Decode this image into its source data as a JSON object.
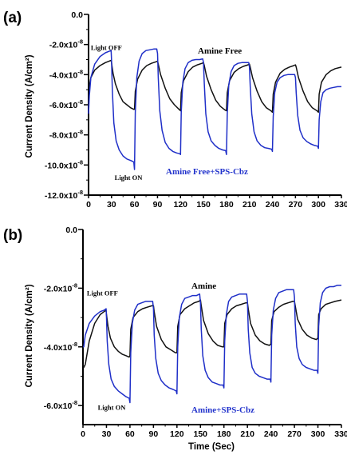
{
  "chart_data": [
    {
      "type": "line",
      "panel_label": "(a)",
      "title": "",
      "xlabel": "",
      "ylabel": "Current Density (A/cm²)",
      "xlim": [
        0,
        330
      ],
      "ylim": [
        -1.2e-07,
        0.0
      ],
      "x_ticks": [
        0,
        30,
        60,
        90,
        120,
        150,
        180,
        210,
        240,
        270,
        300,
        330
      ],
      "y_ticks": [
        {
          "value": 0.0,
          "label": "0.0"
        },
        {
          "value": -2e-08,
          "label": "-2.0x10",
          "exp": "-8"
        },
        {
          "value": -4e-08,
          "label": "-4.0x10",
          "exp": "-8"
        },
        {
          "value": -6e-08,
          "label": "-6.0x10",
          "exp": "-8"
        },
        {
          "value": -8e-08,
          "label": "-8.0x10",
          "exp": "-8"
        },
        {
          "value": -1e-07,
          "label": "-10.0x10",
          "exp": "-8"
        },
        {
          "value": -1.2e-07,
          "label": "-12.0x10",
          "exp": "-8"
        }
      ],
      "annotations": [
        {
          "text": "Light OFF",
          "x": 3,
          "y": -2.35e-08
        },
        {
          "text": "Light ON",
          "x": 34,
          "y": -1.1e-07
        }
      ],
      "series": [
        {
          "name": "Amine Free",
          "color": "#111111",
          "x": [
            0,
            1,
            3,
            8,
            15,
            22,
            27,
            29.5,
            30,
            32,
            35,
            40,
            45,
            50,
            55,
            59,
            60,
            61,
            64,
            70,
            76,
            82,
            88,
            90,
            91,
            94,
            100,
            106,
            112,
            118,
            120,
            121,
            124,
            130,
            136,
            142,
            148,
            150,
            151,
            154,
            160,
            166,
            172,
            178,
            180,
            181,
            184,
            190,
            196,
            202,
            208,
            210,
            211,
            214,
            220,
            226,
            232,
            238,
            240,
            241,
            244,
            250,
            256,
            262,
            268,
            270,
            271,
            274,
            280,
            286,
            292,
            298,
            300,
            301,
            304,
            310,
            316,
            322,
            330
          ],
          "y": [
            -5.9e-08,
            -4.8e-08,
            -4.2e-08,
            -3.7e-08,
            -3.4e-08,
            -3.2e-08,
            -3.1e-08,
            -3.05e-08,
            -3.2e-08,
            -3.9e-08,
            -4.6e-08,
            -5.3e-08,
            -5.8e-08,
            -6e-08,
            -6.2e-08,
            -6.3e-08,
            -6.3e-08,
            -5.1e-08,
            -4.3e-08,
            -3.7e-08,
            -3.4e-08,
            -3.25e-08,
            -3.15e-08,
            -3.1e-08,
            -3.3e-08,
            -4e-08,
            -4.9e-08,
            -5.6e-08,
            -6e-08,
            -6.3e-08,
            -6.4e-08,
            -5.2e-08,
            -4.4e-08,
            -3.8e-08,
            -3.5e-08,
            -3.35e-08,
            -3.25e-08,
            -3.2e-08,
            -3.4e-08,
            -4.1e-08,
            -5e-08,
            -5.7e-08,
            -6.1e-08,
            -6.35e-08,
            -6.4e-08,
            -5.2e-08,
            -4.4e-08,
            -3.85e-08,
            -3.6e-08,
            -3.45e-08,
            -3.35e-08,
            -3.3e-08,
            -3.5e-08,
            -4.2e-08,
            -5.1e-08,
            -5.8e-08,
            -6.2e-08,
            -6.4e-08,
            -6.5e-08,
            -5.3e-08,
            -4.5e-08,
            -3.9e-08,
            -3.65e-08,
            -3.5e-08,
            -3.4e-08,
            -3.35e-08,
            -3.5e-08,
            -4.2e-08,
            -5.1e-08,
            -5.8e-08,
            -6.2e-08,
            -6.4e-08,
            -6.5e-08,
            -5.3e-08,
            -4.5e-08,
            -4e-08,
            -3.75e-08,
            -3.6e-08,
            -3.5e-08
          ]
        },
        {
          "name": "Amine Free+SPS-Cbz",
          "color": "#1f2fc8",
          "x": [
            0,
            1,
            3,
            8,
            15,
            22,
            27,
            29.5,
            30,
            31,
            33,
            36,
            40,
            45,
            50,
            55,
            59,
            60,
            61,
            63,
            66,
            70,
            75,
            80,
            85,
            89,
            90,
            91,
            93,
            96,
            100,
            105,
            110,
            115,
            119,
            120,
            121,
            123,
            126,
            130,
            135,
            140,
            145,
            149,
            150,
            151,
            153,
            156,
            160,
            165,
            170,
            175,
            179,
            180,
            181,
            183,
            186,
            190,
            195,
            200,
            205,
            209,
            210,
            211,
            213,
            216,
            220,
            225,
            230,
            235,
            239,
            240,
            241,
            243,
            246,
            250,
            255,
            260,
            265,
            269,
            270,
            271,
            273,
            276,
            280,
            285,
            290,
            295,
            299,
            300,
            301,
            303,
            306,
            310,
            315,
            320,
            325,
            330
          ],
          "y": [
            -6.6e-08,
            -5.4e-08,
            -4.2e-08,
            -3.3e-08,
            -2.8e-08,
            -2.55e-08,
            -2.45e-08,
            -2.4e-08,
            -3e-08,
            -5e-08,
            -7.2e-08,
            -8.4e-08,
            -9e-08,
            -9.4e-08,
            -9.6e-08,
            -9.7e-08,
            -9.8e-08,
            -1.03e-07,
            -6.5e-08,
            -4.2e-08,
            -3.1e-08,
            -2.6e-08,
            -2.4e-08,
            -2.35e-08,
            -2.3e-08,
            -2.3e-08,
            -2.6e-08,
            -4.2e-08,
            -6.4e-08,
            -7.7e-08,
            -8.5e-08,
            -8.9e-08,
            -9.1e-08,
            -9.2e-08,
            -9.25e-08,
            -9.3e-08,
            -6.5e-08,
            -4.5e-08,
            -3.6e-08,
            -3.2e-08,
            -3.05e-08,
            -3e-08,
            -3e-08,
            -2.95e-08,
            -3.2e-08,
            -4.6e-08,
            -6.6e-08,
            -7.8e-08,
            -8.4e-08,
            -8.7e-08,
            -8.9e-08,
            -9e-08,
            -9.05e-08,
            -9.3e-08,
            -6.6e-08,
            -4.7e-08,
            -3.8e-08,
            -3.4e-08,
            -3.25e-08,
            -3.2e-08,
            -3.2e-08,
            -3.2e-08,
            -3.5e-08,
            -4.8e-08,
            -6.6e-08,
            -7.8e-08,
            -8.4e-08,
            -8.7e-08,
            -8.85e-08,
            -8.9e-08,
            -8.95e-08,
            -9.1e-08,
            -6.8e-08,
            -5.2e-08,
            -4.5e-08,
            -4.2e-08,
            -4.05e-08,
            -4e-08,
            -4e-08,
            -4e-08,
            -4.2e-08,
            -5.2e-08,
            -6.7e-08,
            -7.7e-08,
            -8.2e-08,
            -8.45e-08,
            -8.6e-08,
            -8.7e-08,
            -8.75e-08,
            -8.9e-08,
            -7e-08,
            -5.8e-08,
            -5.2e-08,
            -5e-08,
            -4.9e-08,
            -4.85e-08,
            -4.8e-08,
            -4.8e-08
          ]
        }
      ]
    },
    {
      "type": "line",
      "panel_label": "(b)",
      "title": "",
      "xlabel": "Time (Sec)",
      "ylabel": "Current Density (A/cm²)",
      "xlim": [
        0,
        330
      ],
      "ylim": [
        -6.65e-08,
        0.0
      ],
      "x_ticks": [
        0,
        30,
        60,
        90,
        120,
        150,
        180,
        210,
        240,
        270,
        300,
        330
      ],
      "y_ticks": [
        {
          "value": 0.0,
          "label": "0.0"
        },
        {
          "value": -2e-08,
          "label": "-2.0x10",
          "exp": "-8"
        },
        {
          "value": -4e-08,
          "label": "-4.0x10",
          "exp": "-8"
        },
        {
          "value": -6e-08,
          "label": "-6.0x10",
          "exp": "-8"
        }
      ],
      "annotations": [
        {
          "text": "Light OFF",
          "x": 5,
          "y": -2.25e-08
        },
        {
          "text": "Light ON",
          "x": 19,
          "y": -6.15e-08
        }
      ],
      "series": [
        {
          "name": "Amine",
          "color": "#111111",
          "x": [
            0,
            1,
            3,
            8,
            15,
            22,
            27,
            29.5,
            30,
            32,
            35,
            40,
            45,
            50,
            55,
            59,
            60,
            61,
            64,
            70,
            76,
            82,
            88,
            90,
            91,
            94,
            100,
            106,
            112,
            118,
            120,
            121,
            124,
            130,
            136,
            142,
            148,
            150,
            151,
            154,
            160,
            166,
            172,
            178,
            180,
            181,
            184,
            190,
            196,
            202,
            208,
            210,
            211,
            214,
            220,
            226,
            232,
            238,
            240,
            241,
            244,
            250,
            256,
            262,
            268,
            270,
            271,
            274,
            280,
            286,
            292,
            298,
            300,
            301,
            304,
            310,
            316,
            322,
            330
          ],
          "y": [
            -4.6e-08,
            -4.7e-08,
            -4.6e-08,
            -3.8e-08,
            -3.2e-08,
            -2.9e-08,
            -2.8e-08,
            -2.75e-08,
            -2.9e-08,
            -3.3e-08,
            -3.7e-08,
            -4e-08,
            -4.15e-08,
            -4.25e-08,
            -4.3e-08,
            -4.35e-08,
            -4.3e-08,
            -3.4e-08,
            -3e-08,
            -2.8e-08,
            -2.7e-08,
            -2.65e-08,
            -2.6e-08,
            -2.6e-08,
            -2.8e-08,
            -3.3e-08,
            -3.75e-08,
            -4e-08,
            -4.1e-08,
            -4.2e-08,
            -4.2e-08,
            -3.3e-08,
            -2.9e-08,
            -2.7e-08,
            -2.6e-08,
            -2.5e-08,
            -2.45e-08,
            -2.4e-08,
            -2.6e-08,
            -3.1e-08,
            -3.55e-08,
            -3.8e-08,
            -3.95e-08,
            -4e-08,
            -4e-08,
            -3.2e-08,
            -2.9e-08,
            -2.7e-08,
            -2.6e-08,
            -2.55e-08,
            -2.5e-08,
            -2.5e-08,
            -2.7e-08,
            -3.2e-08,
            -3.6e-08,
            -3.8e-08,
            -3.9e-08,
            -3.95e-08,
            -3.9e-08,
            -3.1e-08,
            -2.8e-08,
            -2.65e-08,
            -2.55e-08,
            -2.5e-08,
            -2.45e-08,
            -2.45e-08,
            -2.6e-08,
            -3.05e-08,
            -3.4e-08,
            -3.6e-08,
            -3.7e-08,
            -3.75e-08,
            -3.7e-08,
            -2.9e-08,
            -2.7e-08,
            -2.55e-08,
            -2.5e-08,
            -2.45e-08,
            -2.4e-08
          ]
        },
        {
          "name": "Amine+SPS-Cbz",
          "color": "#1f2fc8",
          "x": [
            0,
            1,
            3,
            8,
            15,
            22,
            27,
            29.5,
            30,
            31,
            33,
            36,
            40,
            45,
            50,
            55,
            59,
            60,
            61,
            63,
            66,
            70,
            75,
            80,
            85,
            89,
            90,
            91,
            93,
            96,
            100,
            105,
            110,
            115,
            119,
            120,
            121,
            123,
            126,
            130,
            135,
            140,
            145,
            149,
            150,
            151,
            153,
            156,
            160,
            165,
            170,
            175,
            179,
            180,
            181,
            183,
            186,
            190,
            195,
            200,
            205,
            209,
            210,
            211,
            213,
            216,
            220,
            225,
            230,
            235,
            239,
            240,
            241,
            243,
            246,
            250,
            255,
            260,
            265,
            269,
            270,
            271,
            273,
            276,
            280,
            285,
            290,
            295,
            299,
            300,
            301,
            303,
            306,
            310,
            315,
            320,
            325,
            330
          ],
          "y": [
            -4e-08,
            -4e-08,
            -3.6e-08,
            -3.2e-08,
            -2.95e-08,
            -2.8e-08,
            -2.75e-08,
            -2.7e-08,
            -3e-08,
            -3.8e-08,
            -4.6e-08,
            -5.1e-08,
            -5.35e-08,
            -5.5e-08,
            -5.6e-08,
            -5.7e-08,
            -5.75e-08,
            -5.9e-08,
            -4.2e-08,
            -3.2e-08,
            -2.75e-08,
            -2.55e-08,
            -2.5e-08,
            -2.45e-08,
            -2.45e-08,
            -2.45e-08,
            -2.7e-08,
            -3.6e-08,
            -4.4e-08,
            -4.9e-08,
            -5.15e-08,
            -5.3e-08,
            -5.4e-08,
            -5.45e-08,
            -5.5e-08,
            -5.6e-08,
            -4e-08,
            -3e-08,
            -2.55e-08,
            -2.35e-08,
            -2.3e-08,
            -2.25e-08,
            -2.25e-08,
            -2.2e-08,
            -2.5e-08,
            -3.4e-08,
            -4.3e-08,
            -4.8e-08,
            -5.05e-08,
            -5.2e-08,
            -5.25e-08,
            -5.3e-08,
            -5.3e-08,
            -5.4e-08,
            -3.8e-08,
            -2.9e-08,
            -2.45e-08,
            -2.3e-08,
            -2.25e-08,
            -2.2e-08,
            -2.2e-08,
            -2.2e-08,
            -2.45e-08,
            -3.4e-08,
            -4.2e-08,
            -4.7e-08,
            -4.9e-08,
            -5e-08,
            -5.05e-08,
            -5.1e-08,
            -5.1e-08,
            -5.2e-08,
            -3.6e-08,
            -2.75e-08,
            -2.35e-08,
            -2.15e-08,
            -2.1e-08,
            -2.05e-08,
            -2.05e-08,
            -2.05e-08,
            -2.3e-08,
            -3.2e-08,
            -4e-08,
            -4.4e-08,
            -4.6e-08,
            -4.7e-08,
            -4.75e-08,
            -4.8e-08,
            -4.8e-08,
            -4.9e-08,
            -3.3e-08,
            -2.5e-08,
            -2.15e-08,
            -2e-08,
            -1.95e-08,
            -1.95e-08,
            -1.9e-08,
            -1.9e-08
          ]
        }
      ]
    }
  ]
}
